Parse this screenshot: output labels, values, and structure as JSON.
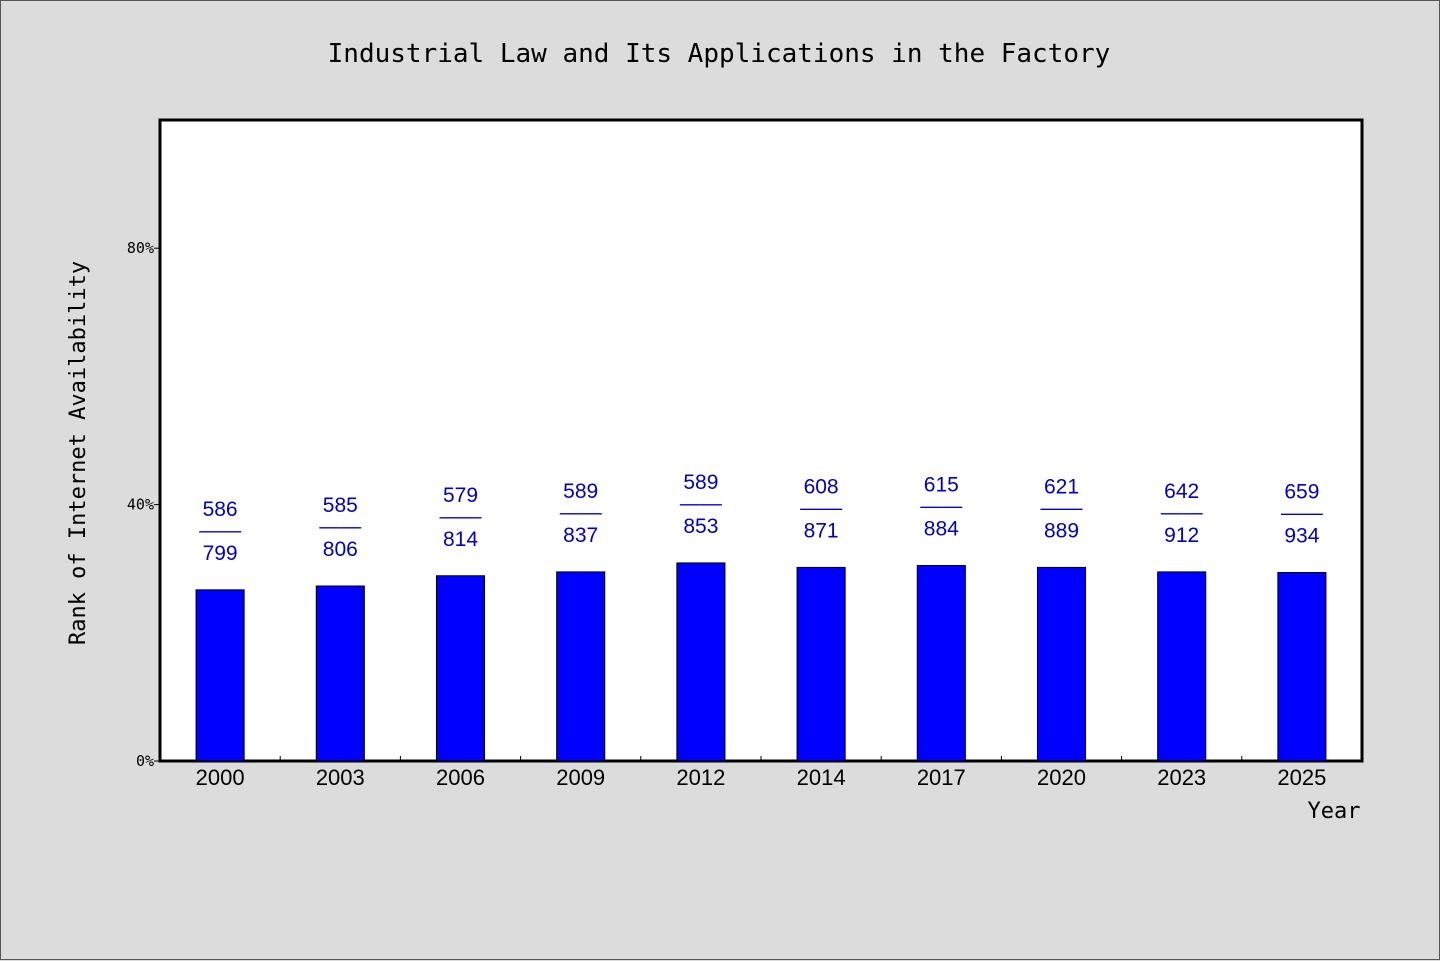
{
  "chart_data": {
    "type": "bar",
    "title": "Industrial Law and Its Applications in the Factory",
    "xlabel": "Year",
    "ylabel": "Rank of Internet Availability",
    "categories": [
      "2000",
      "2003",
      "2006",
      "2009",
      "2012",
      "2014",
      "2017",
      "2020",
      "2023",
      "2025"
    ],
    "values": [
      26.7,
      27.3,
      28.9,
      29.5,
      30.9,
      30.2,
      30.5,
      30.2,
      29.5,
      29.4
    ],
    "data_labels": [
      {
        "top": "586",
        "sep": "——",
        "bottom": "799"
      },
      {
        "top": "585",
        "sep": "——",
        "bottom": "806"
      },
      {
        "top": "579",
        "sep": "——",
        "bottom": "814"
      },
      {
        "top": "589",
        "sep": "——",
        "bottom": "837"
      },
      {
        "top": "589",
        "sep": "——",
        "bottom": "853"
      },
      {
        "top": "608",
        "sep": "——",
        "bottom": "871"
      },
      {
        "top": "615",
        "sep": "——",
        "bottom": "884"
      },
      {
        "top": "621",
        "sep": "——",
        "bottom": "889"
      },
      {
        "top": "642",
        "sep": "——",
        "bottom": "912"
      },
      {
        "top": "659",
        "sep": "——",
        "bottom": "934"
      }
    ],
    "yticks": [
      "0%",
      "40%",
      "80%"
    ],
    "ytick_values": [
      0,
      40,
      80
    ],
    "ylim": [
      0,
      100
    ],
    "grid": false,
    "colors": {
      "bar": "#0000ff",
      "label": "#0000cc",
      "background": "#dcdcdc",
      "plot": "#ffffff"
    }
  }
}
